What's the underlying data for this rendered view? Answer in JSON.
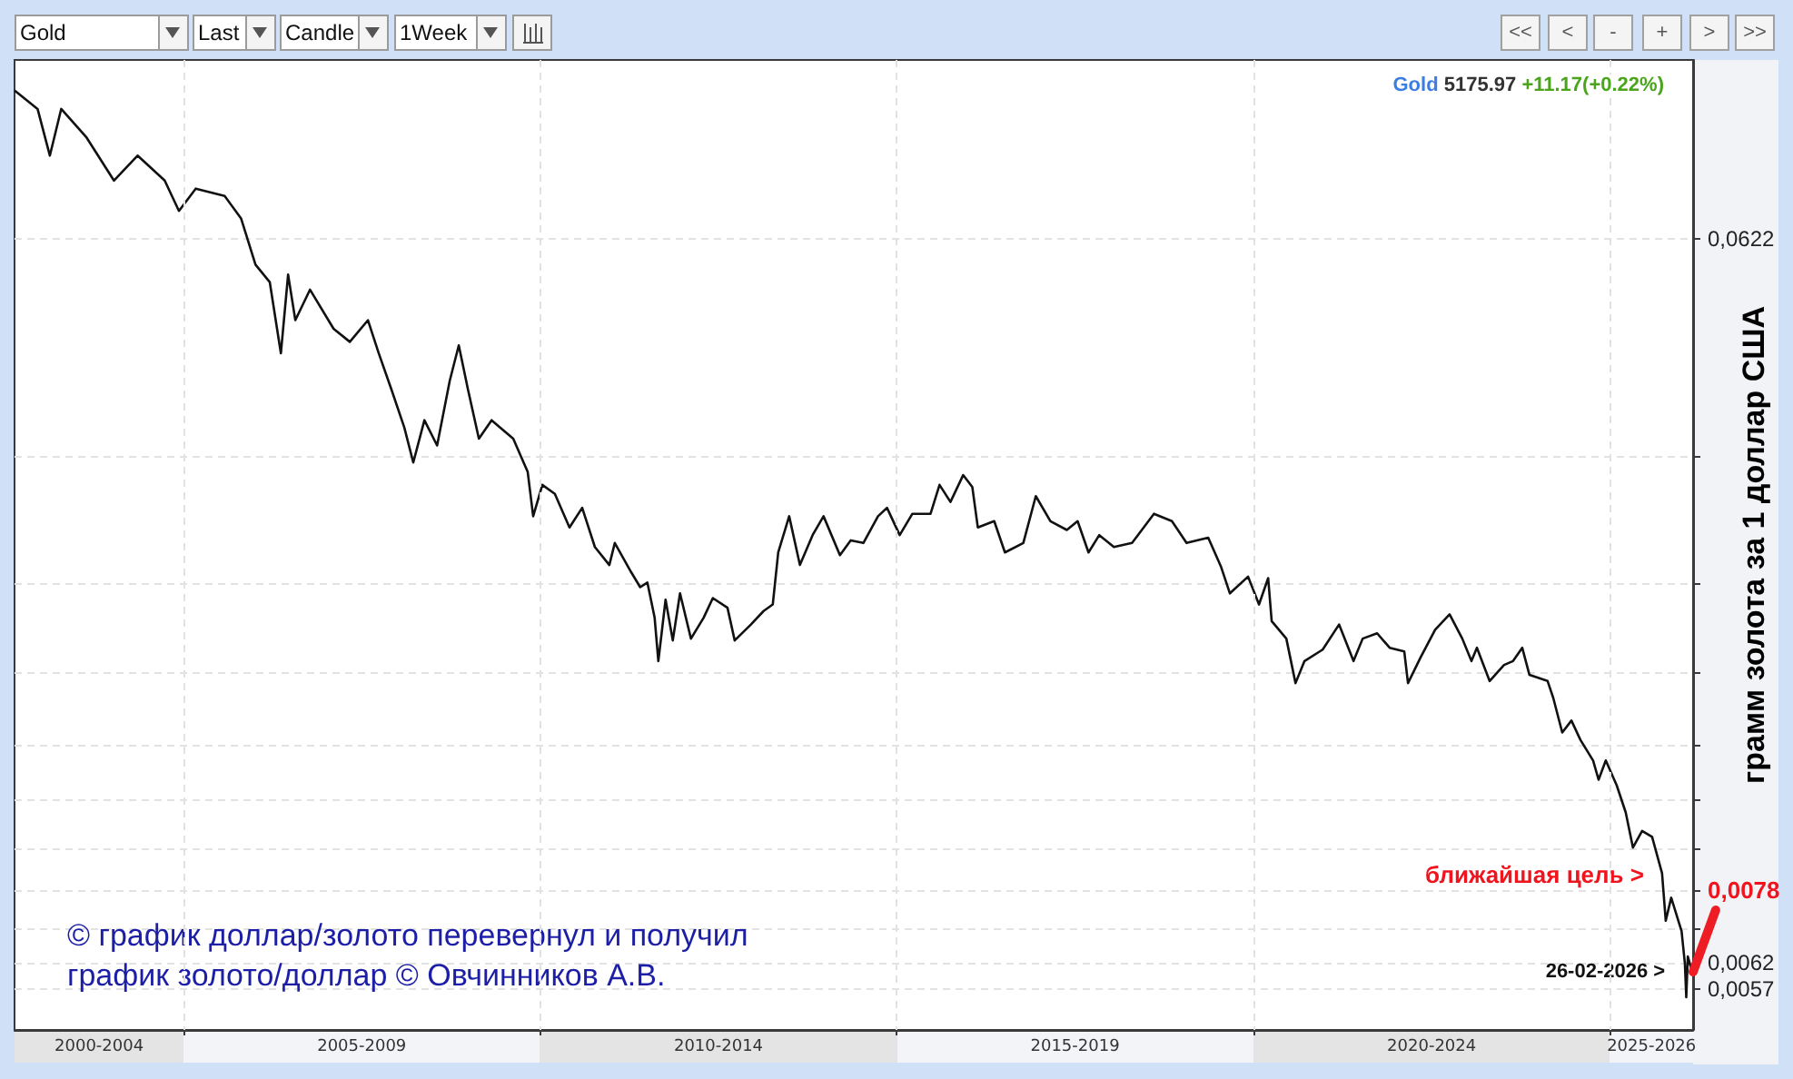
{
  "chart_data": {
    "type": "line",
    "ylabel": "грамм золота за 1 доллар США",
    "color": "#111111",
    "x": [
      "2002-08-23",
      "2002-12-15",
      "2003-02-16",
      "2003-04-15",
      "2003-08-23",
      "2004-01-10",
      "2004-05-10",
      "2004-09-26",
      "2004-12-08",
      "2005-03-04",
      "2005-07-30",
      "2005-10-22",
      "2006-01-04",
      "2006-03-18",
      "2006-05-14",
      "2006-06-20",
      "2006-07-27",
      "2006-10-10",
      "2007-02-08",
      "2007-05-02",
      "2007-08-03",
      "2007-09-27",
      "2007-12-01",
      "2008-02-05",
      "2008-03-22",
      "2008-05-18",
      "2008-07-22",
      "2008-09-25",
      "2008-11-10",
      "2008-12-27",
      "2009-02-21",
      "2009-04-27",
      "2009-08-16",
      "2009-10-29",
      "2009-11-26",
      "2010-01-12",
      "2010-03-17",
      "2010-05-31",
      "2010-08-04",
      "2010-10-08",
      "2010-12-21",
      "2011-01-18",
      "2011-04-12",
      "2011-05-28",
      "2011-07-04",
      "2011-08-10",
      "2011-08-29",
      "2011-10-05",
      "2011-11-11",
      "2011-12-18",
      "2012-02-12",
      "2012-04-17",
      "2012-06-03",
      "2012-08-17",
      "2012-09-23",
      "2012-12-15",
      "2013-02-18",
      "2013-04-06",
      "2013-05-04",
      "2013-06-29",
      "2013-08-23",
      "2013-10-27",
      "2013-12-22",
      "2014-03-16",
      "2014-05-10",
      "2014-07-14",
      "2014-09-27",
      "2014-11-12",
      "2015-01-16",
      "2015-03-22",
      "2015-06-23",
      "2015-08-08",
      "2015-10-03",
      "2015-12-07",
      "2016-01-23",
      "2016-02-20",
      "2016-05-14",
      "2016-07-08",
      "2016-10-10",
      "2016-12-13",
      "2017-02-26",
      "2017-05-21",
      "2017-07-15",
      "2017-09-09",
      "2017-11-03",
      "2018-01-17",
      "2018-04-20",
      "2018-08-10",
      "2018-11-10",
      "2019-01-24",
      "2019-05-15",
      "2019-07-19",
      "2019-09-03",
      "2019-12-05",
      "2020-01-30",
      "2020-03-17",
      "2020-04-04",
      "2020-06-18",
      "2020-08-04",
      "2020-09-19",
      "2020-12-21",
      "2021-03-15",
      "2021-05-28",
      "2021-07-14",
      "2021-09-26",
      "2021-11-29",
      "2022-02-12",
      "2022-03-03",
      "2022-05-07",
      "2022-07-20",
      "2022-10-02",
      "2022-12-06",
      "2023-01-22",
      "2023-02-19",
      "2023-04-25",
      "2023-07-08",
      "2023-08-23",
      "2023-10-09",
      "2023-11-15",
      "2024-02-16",
      "2024-03-16",
      "2024-05-01",
      "2024-06-17",
      "2024-08-02",
      "2024-10-06",
      "2024-11-03",
      "2024-12-10",
      "2025-02-04",
      "2025-03-22",
      "2025-04-28",
      "2025-06-14",
      "2025-08-04",
      "2025-09-24",
      "2025-10-13",
      "2025-11-10",
      "2026-01-02",
      "2026-01-19",
      "2026-01-26",
      "2026-02-03",
      "2026-02-26"
    ],
    "values": [
      0.0996,
      0.0941,
      0.0811,
      0.0941,
      0.0859,
      0.0749,
      0.0811,
      0.0749,
      0.068,
      0.073,
      0.0713,
      0.0664,
      0.0573,
      0.0542,
      0.0432,
      0.0555,
      0.048,
      0.0529,
      0.0467,
      0.0448,
      0.048,
      0.0432,
      0.0385,
      0.0341,
      0.0305,
      0.0349,
      0.0322,
      0.0396,
      0.0443,
      0.0385,
      0.0329,
      0.0349,
      0.0329,
      0.0296,
      0.0257,
      0.0284,
      0.0276,
      0.0248,
      0.0264,
      0.0233,
      0.022,
      0.0236,
      0.0215,
      0.0205,
      0.0208,
      0.0186,
      0.0162,
      0.0197,
      0.0173,
      0.0201,
      0.0174,
      0.0186,
      0.0198,
      0.0192,
      0.0173,
      0.0182,
      0.019,
      0.0194,
      0.0229,
      0.0257,
      0.022,
      0.0242,
      0.0257,
      0.0227,
      0.0238,
      0.0236,
      0.0257,
      0.0264,
      0.0242,
      0.0259,
      0.0259,
      0.0284,
      0.0269,
      0.0293,
      0.0282,
      0.0248,
      0.0253,
      0.0229,
      0.0236,
      0.0274,
      0.0253,
      0.0246,
      0.0253,
      0.0229,
      0.0242,
      0.0233,
      0.0236,
      0.0259,
      0.0253,
      0.0236,
      0.024,
      0.0219,
      0.0201,
      0.0212,
      0.0194,
      0.0211,
      0.0184,
      0.0174,
      0.0151,
      0.0162,
      0.0168,
      0.0182,
      0.0162,
      0.0174,
      0.0177,
      0.0169,
      0.0167,
      0.0151,
      0.0164,
      0.0179,
      0.0188,
      0.0174,
      0.0162,
      0.0169,
      0.0152,
      0.016,
      0.0162,
      0.0169,
      0.0155,
      0.0152,
      0.0144,
      0.0129,
      0.0134,
      0.0126,
      0.0118,
      0.0111,
      0.0118,
      0.0109,
      0.01,
      0.00894,
      0.00943,
      0.00925,
      0.00824,
      0.00708,
      0.00762,
      0.00685,
      0.00618,
      0.00555,
      0.00632,
      0.00601
    ],
    "xlim": [
      "2002-08-19",
      "2026-03-02"
    ],
    "xticks": [
      {
        "value": "2003-10-26",
        "label": "2000-2004"
      },
      {
        "value": "2005-01-01",
        "label": null
      },
      {
        "value": "2007-07-02",
        "label": "2005-2009"
      },
      {
        "value": "2010-01-01",
        "label": null
      },
      {
        "value": "2012-07-02",
        "label": "2010-2014"
      },
      {
        "value": "2015-01-01",
        "label": null
      },
      {
        "value": "2017-07-02",
        "label": "2015-2019"
      },
      {
        "value": "2020-01-01",
        "label": null
      },
      {
        "value": "2022-07-02",
        "label": "2020-2024"
      },
      {
        "value": "2025-01-01",
        "label": null
      },
      {
        "value": "2025-08-01",
        "label": "2025-2026"
      }
    ],
    "ylim": [
      0.005,
      0.11
    ],
    "yticks": [
      {
        "value": 0.0622,
        "label": "0,0622"
      },
      {
        "value": 0.0311,
        "label": null
      },
      {
        "value": 0.0207,
        "label": null
      },
      {
        "value": 0.0156,
        "label": null
      },
      {
        "value": 0.0124,
        "label": null
      },
      {
        "value": 0.0104,
        "label": null
      },
      {
        "value": 0.00889,
        "label": null
      },
      {
        "value": 0.0078,
        "label": "0,0078"
      },
      {
        "value": 0.00691,
        "label": null
      },
      {
        "value": 0.0062,
        "label": "0,0062"
      },
      {
        "value": 0.0057,
        "label": "0,0057"
      }
    ],
    "log": true,
    "grid": true,
    "annotations": [
      "Gold",
      "Last",
      "Candle",
      "1Week",
      "<<",
      "<",
      "-",
      "+",
      ">",
      ">>",
      "Gold 5175.97 +11.17(+0.22%)",
      "ближайшая цель >",
      "© график доллар/золото перевернул и получил",
      "график золото/доллар © Овчинников А.В.",
      {
        "text": "26-02-2026 >",
        "x": "2026-02-26",
        "y": 0.00601
      }
    ]
  }
}
